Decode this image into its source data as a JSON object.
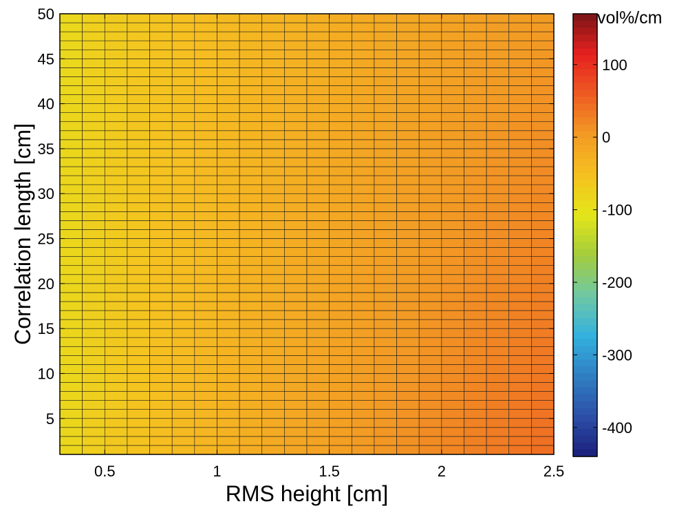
{
  "chart_data": {
    "type": "heatmap",
    "xlabel": "RMS height [cm]",
    "ylabel": "Correlation length [cm]",
    "xlim": [
      0.3,
      2.5
    ],
    "ylim": [
      1,
      50
    ],
    "x_ticks": [
      "0.5",
      "1",
      "1.5",
      "2",
      "2.5"
    ],
    "y_ticks": [
      "5",
      "10",
      "15",
      "20",
      "25",
      "30",
      "35",
      "40",
      "45",
      "50"
    ],
    "grid_columns": 22,
    "grid_rows": 49,
    "value_description": "approx. value range -95 (low RMS height, left) to 25 (high RMS height, short correlation length)",
    "value_range_estimate": [
      -95,
      25
    ],
    "colorbar": {
      "label": "vol%/cm",
      "range": [
        -440,
        170
      ],
      "ticks": [
        "100",
        "0",
        "-100",
        "-200",
        "-300",
        "-400"
      ],
      "colormap": "jet",
      "colors": [
        "#1a1f7a",
        "#2d4fa8",
        "#2f7fc2",
        "#34b1de",
        "#6fc8a4",
        "#a3cc3c",
        "#e3e619",
        "#f6c020",
        "#f29a24",
        "#ee5a22",
        "#e6201f",
        "#7a1517"
      ]
    }
  }
}
